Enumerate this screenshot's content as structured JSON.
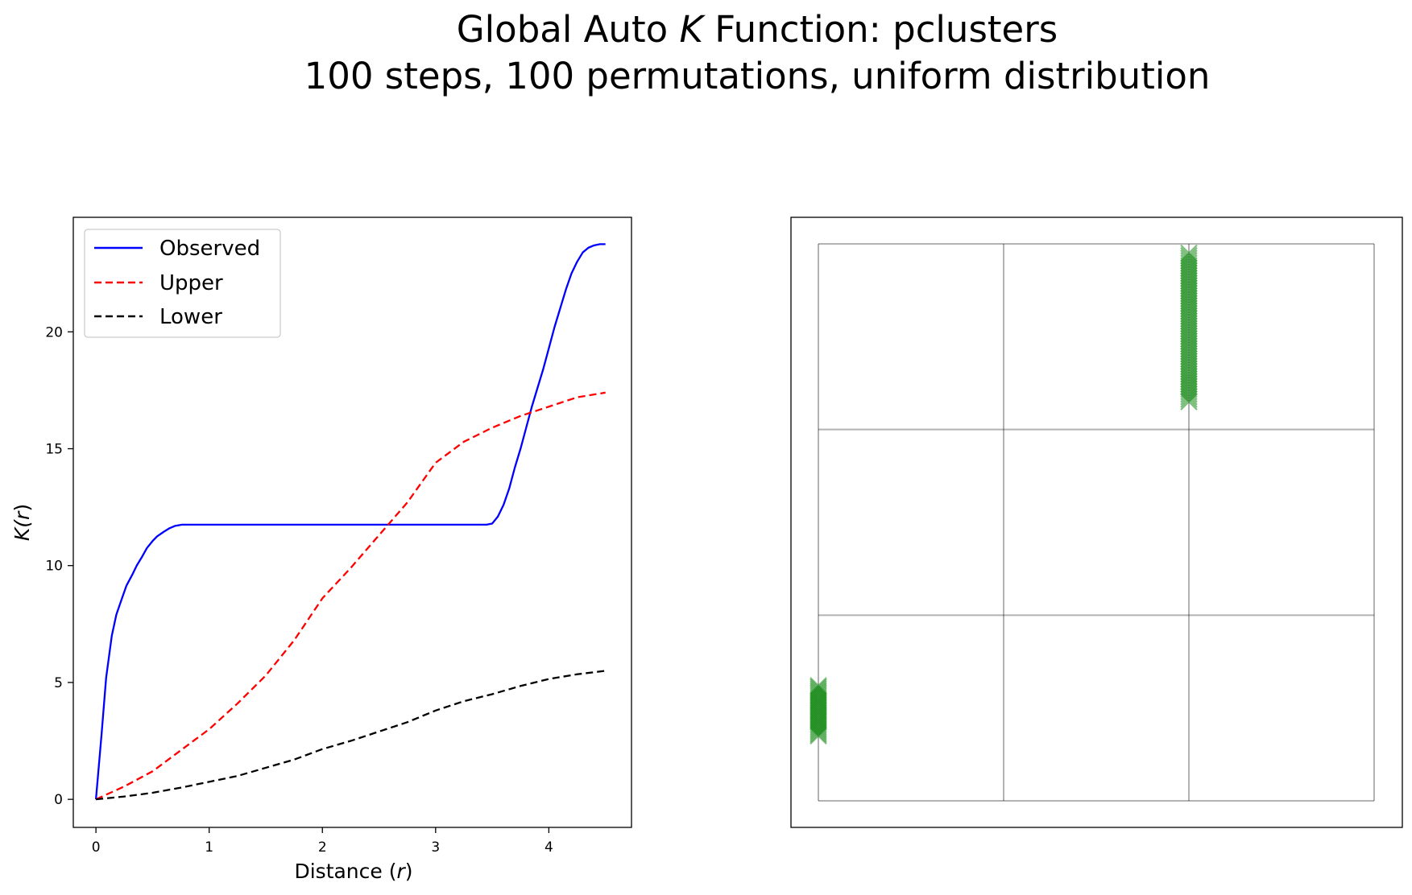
{
  "chart_data": [
    {
      "type": "line",
      "title": {
        "line1_prefix": "Global Auto ",
        "line1_italic": "K",
        "line1_suffix": " Function: pclusters",
        "line2": "100 steps, 100 permutations, uniform distribution"
      },
      "xlabel": {
        "prefix": "Distance (",
        "italic": "r",
        "suffix": ")"
      },
      "ylabel": {
        "prefix": "K(",
        "italic": "r",
        "suffix": ")"
      },
      "xlim": [
        -0.2,
        4.73
      ],
      "ylim": [
        -1.2,
        24.9
      ],
      "xticks": [
        0,
        1,
        2,
        3,
        4
      ],
      "yticks": [
        0,
        5,
        10,
        15,
        20
      ],
      "legend_position": "top-left",
      "series": [
        {
          "name": "Observed",
          "color": "#0000ff",
          "style": "solid",
          "x": [
            0,
            0.05,
            0.09,
            0.14,
            0.18,
            0.23,
            0.27,
            0.32,
            0.36,
            0.41,
            0.45,
            0.5,
            0.54,
            0.6,
            0.65,
            0.7,
            0.76,
            0.8,
            1.0,
            1.5,
            2.0,
            2.5,
            3.0,
            3.45,
            3.5,
            3.55,
            3.6,
            3.65,
            3.7,
            3.75,
            3.8,
            3.85,
            3.9,
            3.95,
            4.0,
            4.05,
            4.1,
            4.15,
            4.2,
            4.25,
            4.3,
            4.35,
            4.4,
            4.45,
            4.5
          ],
          "y": [
            0,
            2.8,
            5.2,
            7.0,
            7.9,
            8.6,
            9.15,
            9.6,
            10.0,
            10.4,
            10.75,
            11.05,
            11.25,
            11.45,
            11.6,
            11.7,
            11.75,
            11.75,
            11.75,
            11.75,
            11.75,
            11.75,
            11.75,
            11.75,
            11.8,
            12.1,
            12.6,
            13.3,
            14.2,
            15.0,
            15.9,
            16.8,
            17.6,
            18.4,
            19.3,
            20.2,
            21.0,
            21.8,
            22.5,
            23.0,
            23.4,
            23.6,
            23.7,
            23.75,
            23.75
          ]
        },
        {
          "name": "Upper",
          "color": "#ff0000",
          "style": "dashed",
          "x": [
            0,
            0.25,
            0.5,
            0.75,
            1.0,
            1.25,
            1.5,
            1.75,
            2.0,
            2.25,
            2.5,
            2.75,
            3.0,
            3.25,
            3.5,
            3.75,
            4.0,
            4.25,
            4.5
          ],
          "y": [
            0,
            0.55,
            1.2,
            2.1,
            3.0,
            4.1,
            5.3,
            6.8,
            8.6,
            9.9,
            11.3,
            12.7,
            14.4,
            15.3,
            15.9,
            16.4,
            16.8,
            17.2,
            17.4
          ]
        },
        {
          "name": "Lower",
          "color": "#000000",
          "style": "dashed",
          "x": [
            0,
            0.25,
            0.5,
            0.75,
            1.0,
            1.25,
            1.5,
            1.75,
            2.0,
            2.25,
            2.5,
            2.75,
            3.0,
            3.25,
            3.5,
            3.75,
            4.0,
            4.25,
            4.5
          ],
          "y": [
            0,
            0.12,
            0.28,
            0.5,
            0.75,
            1.0,
            1.35,
            1.7,
            2.15,
            2.5,
            2.9,
            3.3,
            3.8,
            4.2,
            4.5,
            4.85,
            5.15,
            5.35,
            5.5
          ]
        }
      ]
    },
    {
      "type": "scatter",
      "grid_lines_color": "#000000",
      "marker_color": "#008000",
      "marker": "x",
      "axes_visible": false,
      "grid": {
        "columns": 3,
        "rows": 3
      },
      "clusters": [
        {
          "x": 2.0,
          "y_range": [
            2.15,
            2.95
          ],
          "count": 60
        },
        {
          "x": 0.0,
          "y_range": [
            0.35,
            0.62
          ],
          "count": 30
        }
      ]
    }
  ]
}
